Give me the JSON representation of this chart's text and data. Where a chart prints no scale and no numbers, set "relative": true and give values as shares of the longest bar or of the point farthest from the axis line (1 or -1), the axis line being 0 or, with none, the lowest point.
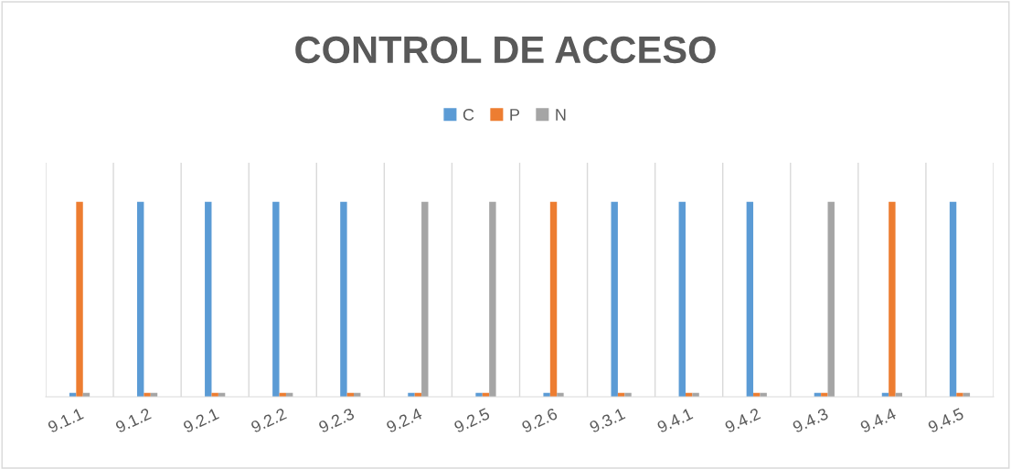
{
  "chart_data": {
    "type": "bar",
    "title": "CONTROL DE ACCESO",
    "relative": true,
    "legend": "top",
    "grid": "x",
    "categories": [
      "9.1.1",
      "9.1.2",
      "9.2.1",
      "9.2.2",
      "9.2.3",
      "9.2.4",
      "9.2.5",
      "9.2.6",
      "9.3.1",
      "9.4.1",
      "9.4.2",
      "9.4.3",
      "9.4.4",
      "9.4.5"
    ],
    "series": [
      {
        "name": "C",
        "color": "#5b9bd5",
        "values": [
          0.02,
          1,
          1,
          1,
          1,
          0.02,
          0.02,
          0.02,
          1,
          1,
          1,
          0.02,
          0.02,
          1
        ]
      },
      {
        "name": "P",
        "color": "#ed7d31",
        "values": [
          1,
          0.02,
          0.02,
          0.02,
          0.02,
          0.02,
          0.02,
          1,
          0.02,
          0.02,
          0.02,
          0.02,
          1,
          0.02
        ]
      },
      {
        "name": "N",
        "color": "#a5a5a5",
        "values": [
          0.02,
          0.02,
          0.02,
          0.02,
          0.02,
          1,
          1,
          0.02,
          0.02,
          0.02,
          0.02,
          1,
          0.02,
          0.02
        ]
      }
    ]
  }
}
